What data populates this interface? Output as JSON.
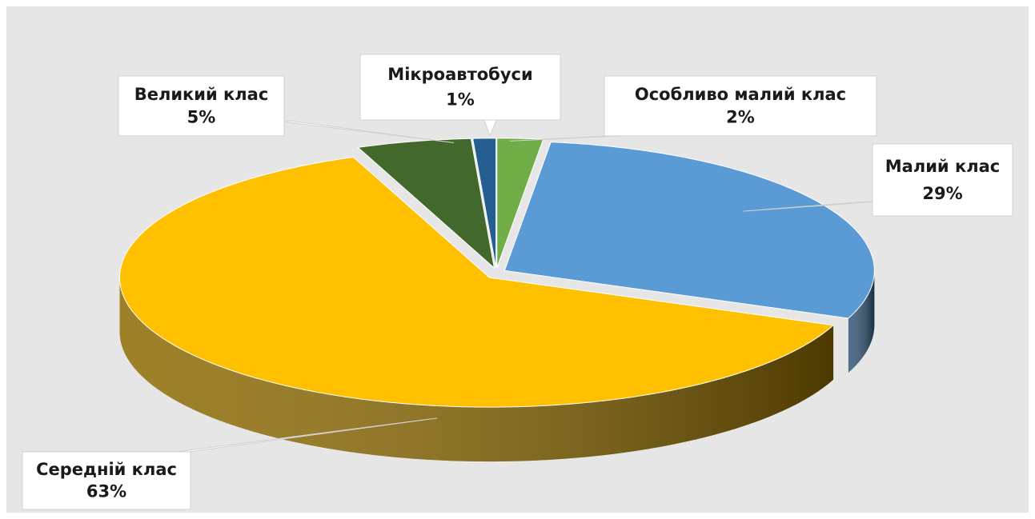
{
  "chart_data": {
    "type": "pie3d",
    "categories": [
      "Особливо малий клас",
      "Малий клас",
      "Середній клас",
      "Великий клас",
      "Мікроавтобуси"
    ],
    "values": [
      2,
      29,
      63,
      5,
      1
    ],
    "value_labels": [
      "2%",
      "29%",
      "63%",
      "5%",
      "1%"
    ],
    "colors": [
      "#70ad47",
      "#5b9bd5",
      "#ffc000",
      "#43682b",
      "#255e91"
    ]
  }
}
